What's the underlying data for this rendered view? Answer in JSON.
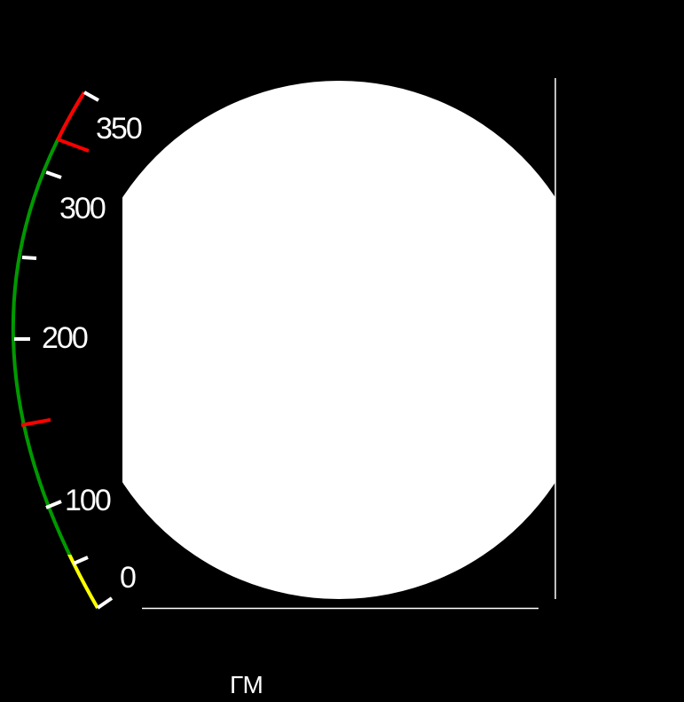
{
  "gauge": {
    "scale_labels": [
      "350",
      "300",
      "200",
      "100",
      "0"
    ],
    "colors": {
      "caution": "#ffff00",
      "normal": "#009900",
      "limit": "#ff0000",
      "tick": "#ffffff"
    }
  },
  "caption": "ГМ"
}
